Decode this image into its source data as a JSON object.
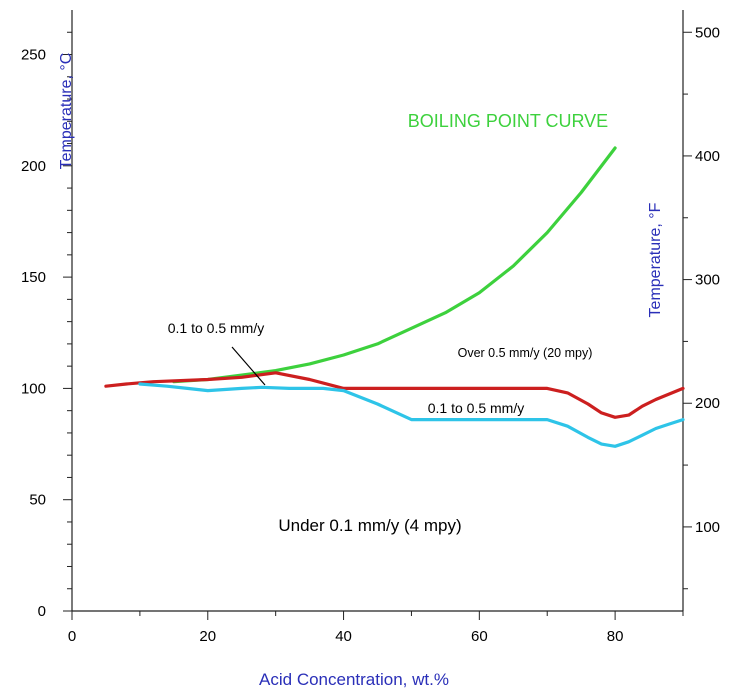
{
  "chart_data": {
    "type": "line",
    "xlabel": "Acid Concentration, wt.%",
    "ylabel_left": "Temperature, °C",
    "ylabel_right": "Temperature, °F",
    "xlim": [
      0,
      90
    ],
    "ylim": [
      0,
      270
    ],
    "y2lim": [
      32,
      518
    ],
    "x_ticks": [
      0,
      20,
      40,
      60,
      80
    ],
    "y_ticks": [
      0,
      50,
      100,
      150,
      200,
      250
    ],
    "y2_ticks": [
      100,
      200,
      300,
      400,
      500
    ],
    "grid": false,
    "colors": {
      "boiling": "#3dd13d",
      "red": "#cc1f1f",
      "blue": "#2ec4e8",
      "label_blue": "#2a2fb8",
      "axis": "#222222"
    },
    "series": [
      {
        "key": "boiling",
        "name": "BOILING POINT CURVE",
        "x": [
          15,
          20,
          25,
          30,
          35,
          40,
          45,
          50,
          55,
          60,
          65,
          70,
          75,
          80
        ],
        "y": [
          103,
          104,
          106,
          108,
          111,
          115,
          120,
          127,
          134,
          143,
          155,
          170,
          188,
          208
        ]
      },
      {
        "key": "red",
        "x": [
          5,
          8,
          12,
          16,
          20,
          25,
          30,
          35,
          40,
          45,
          50,
          55,
          60,
          65,
          70,
          73,
          76,
          78,
          80,
          82,
          84,
          86,
          90
        ],
        "y": [
          101,
          102,
          103,
          103.5,
          104,
          105,
          107,
          104,
          100,
          100,
          100,
          100,
          100,
          100,
          100,
          98,
          93,
          89,
          87,
          88,
          92,
          95,
          100
        ]
      },
      {
        "key": "blue",
        "x": [
          10,
          14,
          17,
          20,
          25,
          28,
          32,
          37,
          40,
          45,
          50,
          55,
          60,
          65,
          70,
          73,
          76,
          78,
          80,
          82,
          84,
          86,
          88,
          90
        ],
        "y": [
          102,
          101,
          100,
          99,
          100,
          100.5,
          100,
          100,
          99,
          93,
          86,
          86,
          86,
          86,
          86,
          83,
          78,
          75,
          74,
          76,
          79,
          82,
          84,
          86
        ]
      }
    ],
    "annotations": {
      "boiling_label": "BOILING POINT CURVE",
      "over": "Over 0.5 mm/y (20 mpy)",
      "mid_left": "0.1  to 0.5 mm/y",
      "mid_right": "0.1  to 0.5 mm/y",
      "under": "Under 0.1 mm/y (4 mpy)"
    }
  }
}
